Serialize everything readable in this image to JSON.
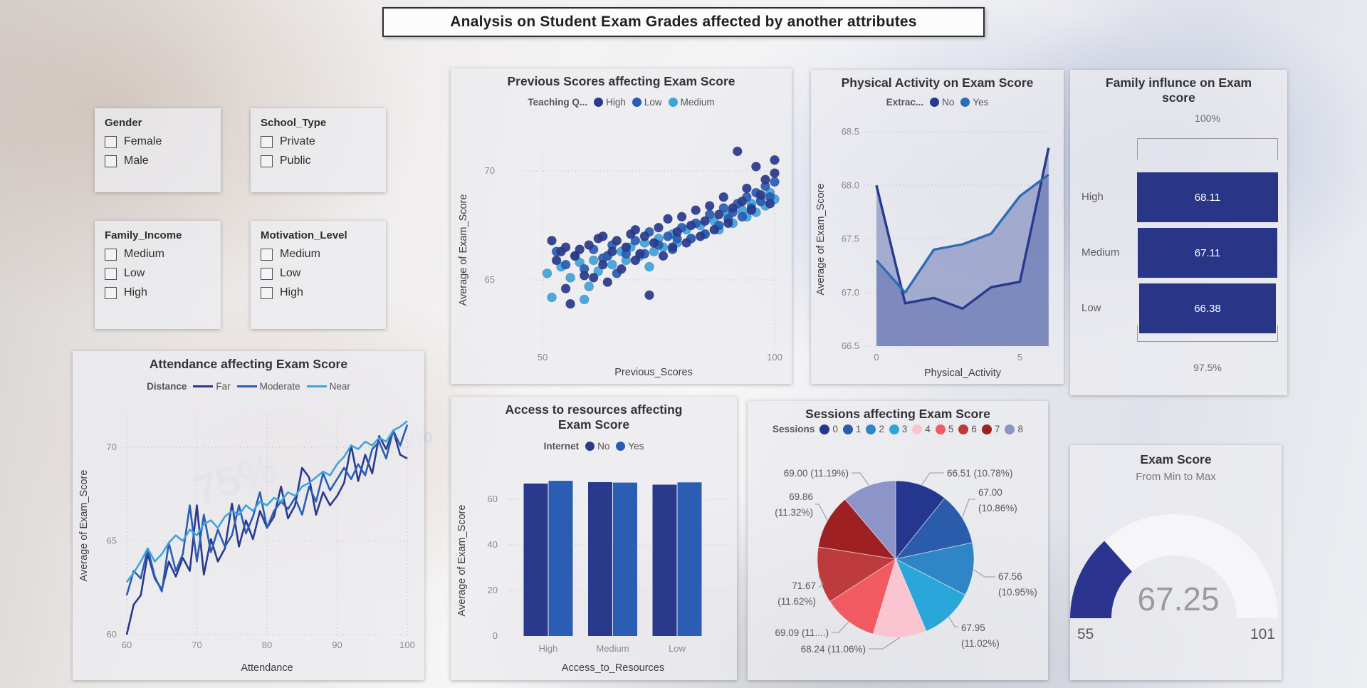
{
  "title": "Analysis on Student Exam Grades affected by another attributes",
  "background_ghost_text": "75%",
  "colors": {
    "navy": "#293A8C",
    "blue": "#2A5DB3",
    "light_blue": "#3FA4DC",
    "bar_navy": "#293586",
    "gauge_fill": "#2B3590",
    "gauge_track": "#F6F6F8"
  },
  "filters": [
    {
      "title": "Gender",
      "options": [
        "Female",
        "Male"
      ]
    },
    {
      "title": "School_Type",
      "options": [
        "Private",
        "Public"
      ]
    },
    {
      "title": "Family_Income",
      "options": [
        "Medium",
        "Low",
        "High"
      ]
    },
    {
      "title": "Motivation_Level",
      "options": [
        "Medium",
        "Low",
        "High"
      ]
    }
  ],
  "chart_data": [
    {
      "id": "attendance",
      "type": "line",
      "title": "Attendance affecting Exam Score",
      "legend_title": "Distance",
      "xlabel": "Attendance",
      "ylabel": "Average of Exam_Score",
      "xlim": [
        60,
        100
      ],
      "ylim": [
        59.8,
        72.2
      ],
      "xticks": [
        60,
        70,
        80,
        90,
        100
      ],
      "yticks": [
        60,
        65,
        70
      ],
      "x_start": 60,
      "x_step": 1,
      "series": [
        {
          "name": "Far",
          "color": "#293A8C",
          "values": [
            60.0,
            61.6,
            62.1,
            64.3,
            63.0,
            62.4,
            63.9,
            63.1,
            64.1,
            63.4,
            66.9,
            63.2,
            65.1,
            63.9,
            64.6,
            67.0,
            64.7,
            66.1,
            65.1,
            66.6,
            65.7,
            66.3,
            67.9,
            66.2,
            66.9,
            68.9,
            68.4,
            66.4,
            67.6,
            66.9,
            67.4,
            68.1,
            70.1,
            68.2,
            69.6,
            68.6,
            70.6,
            69.9,
            70.9,
            69.6,
            69.4
          ]
        },
        {
          "name": "Moderate",
          "color": "#2A5DB3",
          "values": [
            62.1,
            63.4,
            63.0,
            64.6,
            63.1,
            62.3,
            64.9,
            63.4,
            64.3,
            66.9,
            63.9,
            66.4,
            64.4,
            65.6,
            64.7,
            65.3,
            66.9,
            65.4,
            66.3,
            67.6,
            65.7,
            66.6,
            67.1,
            66.7,
            67.3,
            66.4,
            67.9,
            67.1,
            68.6,
            67.7,
            68.3,
            68.9,
            68.3,
            69.1,
            68.5,
            69.9,
            70.3,
            69.4,
            70.9,
            70.1,
            71.2
          ]
        },
        {
          "name": "Near",
          "color": "#3FA4DC",
          "values": [
            62.8,
            63.3,
            63.9,
            64.6,
            63.9,
            64.3,
            64.9,
            65.3,
            65.0,
            65.6,
            65.3,
            65.9,
            66.1,
            65.7,
            66.3,
            66.6,
            66.4,
            66.9,
            66.6,
            67.1,
            66.9,
            67.3,
            67.1,
            67.6,
            67.4,
            67.9,
            68.1,
            68.4,
            68.7,
            68.5,
            69.1,
            69.5,
            70.1,
            69.9,
            70.3,
            70.1,
            70.5,
            70.3,
            70.9,
            71.1,
            71.4
          ]
        }
      ]
    },
    {
      "id": "previous",
      "type": "scatter",
      "title": "Previous Scores affecting Exam Score",
      "legend_title": "Teaching Q...",
      "xlabel": "Previous_Scores",
      "ylabel": "Average of Exam_Score",
      "xlim": [
        47,
        101
      ],
      "ylim": [
        61.5,
        70.9
      ],
      "xticks": [
        50,
        100
      ],
      "yticks": [
        65,
        70
      ],
      "series": [
        {
          "name": "High",
          "color": "#293A8C",
          "points": [
            [
              52,
              66.8
            ],
            [
              53,
              65.9
            ],
            [
              54,
              66.3
            ],
            [
              55,
              64.6
            ],
            [
              55,
              66.5
            ],
            [
              56,
              63.9
            ],
            [
              57,
              66.1
            ],
            [
              58,
              66.4
            ],
            [
              59,
              65.2
            ],
            [
              60,
              66.6
            ],
            [
              61,
              65.1
            ],
            [
              62,
              66.9
            ],
            [
              63,
              65.7
            ],
            [
              63,
              67.0
            ],
            [
              64,
              64.9
            ],
            [
              65,
              66.3
            ],
            [
              66,
              66.8
            ],
            [
              67,
              65.5
            ],
            [
              68,
              66.5
            ],
            [
              69,
              67.1
            ],
            [
              70,
              65.9
            ],
            [
              70,
              67.3
            ],
            [
              71,
              66.2
            ],
            [
              72,
              67.0
            ],
            [
              73,
              64.3
            ],
            [
              74,
              66.7
            ],
            [
              75,
              67.4
            ],
            [
              76,
              66.1
            ],
            [
              77,
              67.8
            ],
            [
              78,
              66.5
            ],
            [
              79,
              67.2
            ],
            [
              80,
              67.9
            ],
            [
              81,
              66.7
            ],
            [
              82,
              67.5
            ],
            [
              83,
              68.2
            ],
            [
              84,
              67.0
            ],
            [
              85,
              67.7
            ],
            [
              86,
              68.4
            ],
            [
              87,
              67.3
            ],
            [
              88,
              68.0
            ],
            [
              89,
              68.8
            ],
            [
              90,
              67.6
            ],
            [
              91,
              68.3
            ],
            [
              92,
              70.9
            ],
            [
              93,
              68.6
            ],
            [
              94,
              69.2
            ],
            [
              95,
              68.2
            ],
            [
              96,
              70.2
            ],
            [
              97,
              68.9
            ],
            [
              98,
              69.6
            ],
            [
              99,
              68.5
            ],
            [
              100,
              69.9
            ],
            [
              100,
              70.5
            ]
          ]
        },
        {
          "name": "Low",
          "color": "#2A5DB3",
          "points": [
            [
              53,
              66.3
            ],
            [
              55,
              65.7
            ],
            [
              57,
              66.1
            ],
            [
              59,
              65.5
            ],
            [
              61,
              66.4
            ],
            [
              63,
              66.0
            ],
            [
              64,
              66.1
            ],
            [
              65,
              66.6
            ],
            [
              66,
              65.3
            ],
            [
              68,
              66.2
            ],
            [
              70,
              66.8
            ],
            [
              72,
              66.2
            ],
            [
              73,
              67.2
            ],
            [
              75,
              66.6
            ],
            [
              77,
              67.0
            ],
            [
              78,
              66.4
            ],
            [
              79,
              66.9
            ],
            [
              80,
              67.4
            ],
            [
              82,
              66.9
            ],
            [
              83,
              67.6
            ],
            [
              85,
              67.1
            ],
            [
              86,
              68.0
            ],
            [
              88,
              67.5
            ],
            [
              89,
              68.3
            ],
            [
              90,
              67.8
            ],
            [
              91,
              68.1
            ],
            [
              92,
              68.5
            ],
            [
              93,
              67.9
            ],
            [
              94,
              68.8
            ],
            [
              95,
              68.3
            ],
            [
              96,
              69.0
            ],
            [
              97,
              68.6
            ],
            [
              98,
              69.3
            ],
            [
              99,
              68.8
            ],
            [
              100,
              69.5
            ]
          ]
        },
        {
          "name": "Medium",
          "color": "#3FA4DC",
          "points": [
            [
              51,
              65.3
            ],
            [
              52,
              64.2
            ],
            [
              54,
              65.6
            ],
            [
              56,
              65.1
            ],
            [
              58,
              65.8
            ],
            [
              59,
              64.1
            ],
            [
              60,
              64.7
            ],
            [
              61,
              65.9
            ],
            [
              62,
              65.4
            ],
            [
              64,
              66.1
            ],
            [
              65,
              65.7
            ],
            [
              67,
              66.3
            ],
            [
              68,
              65.9
            ],
            [
              69,
              66.5
            ],
            [
              71,
              66.1
            ],
            [
              72,
              66.7
            ],
            [
              73,
              65.6
            ],
            [
              74,
              66.3
            ],
            [
              75,
              66.9
            ],
            [
              76,
              66.5
            ],
            [
              78,
              67.1
            ],
            [
              79,
              66.7
            ],
            [
              81,
              67.3
            ],
            [
              82,
              66.9
            ],
            [
              84,
              67.5
            ],
            [
              85,
              67.1
            ],
            [
              87,
              67.7
            ],
            [
              88,
              67.3
            ],
            [
              90,
              68.0
            ],
            [
              91,
              67.6
            ],
            [
              93,
              68.2
            ],
            [
              94,
              67.9
            ],
            [
              95,
              68.5
            ],
            [
              96,
              68.1
            ],
            [
              97,
              68.7
            ],
            [
              98,
              68.4
            ],
            [
              99,
              69.0
            ],
            [
              100,
              68.7
            ]
          ]
        }
      ]
    },
    {
      "id": "access",
      "type": "bar",
      "title": "Access to resources affecting Exam Score",
      "legend_title": "Internet",
      "xlabel": "Access_to_Resources",
      "ylabel": "Average of Exam_Score",
      "categories": [
        "High",
        "Medium",
        "Low"
      ],
      "yticks": [
        0,
        20,
        40,
        60
      ],
      "ylim": [
        0,
        70
      ],
      "series": [
        {
          "name": "No",
          "color": "#293A8C",
          "values": [
            66.9,
            67.5,
            66.4
          ]
        },
        {
          "name": "Yes",
          "color": "#2A5DB3",
          "values": [
            68.1,
            67.3,
            67.4
          ]
        }
      ]
    },
    {
      "id": "physical",
      "type": "area-line",
      "title": "Physical Activity on Exam Score",
      "legend_title": "Extrac...",
      "xlabel": "Physical_Activity",
      "ylabel": "Average of Exam_Score",
      "xlim": [
        0,
        6
      ],
      "ylim": [
        66.5,
        68.5
      ],
      "xticks": [
        0,
        5
      ],
      "yticks": [
        66.5,
        67.0,
        67.5,
        68.0,
        68.5
      ],
      "x": [
        0,
        1,
        2,
        3,
        4,
        5,
        6
      ],
      "series": [
        {
          "name": "No",
          "color": "#293A8C",
          "values": [
            68.0,
            66.9,
            66.95,
            66.85,
            67.05,
            67.1,
            68.35
          ]
        },
        {
          "name": "Yes",
          "color": "#2E6CB5",
          "values": [
            67.3,
            67.0,
            67.4,
            67.45,
            67.55,
            67.9,
            68.1
          ]
        }
      ]
    },
    {
      "id": "sessions",
      "type": "pie",
      "title": "Sessions affecting Exam Score",
      "legend_title": "Sessions",
      "slices": [
        {
          "name": "0",
          "color": "#24368E",
          "pct": 10.78,
          "label": "66.51 (10.78%)"
        },
        {
          "name": "1",
          "color": "#2B5CAC",
          "pct": 10.86,
          "label": "67.00 (10.86%)"
        },
        {
          "name": "2",
          "color": "#2F86C6",
          "pct": 10.95,
          "label": "67.56 (10.95%)"
        },
        {
          "name": "3",
          "color": "#2BA6D9",
          "pct": 11.02,
          "label": "67.95 (11.02%)"
        },
        {
          "name": "4",
          "color": "#FAC4D0",
          "pct": 11.06,
          "label": "68.24 (11.06%)"
        },
        {
          "name": "5",
          "color": "#F05A60",
          "pct": 11.2,
          "label": "69.09 (11....)"
        },
        {
          "name": "6",
          "color": "#BE3B3D",
          "pct": 11.62,
          "label": "71.67 (11.62%)"
        },
        {
          "name": "7",
          "color": "#9E2022",
          "pct": 11.32,
          "label": "69.86 (11.32%)"
        },
        {
          "name": "8",
          "color": "#8C94C8",
          "pct": 11.19,
          "label": "69.00 (11.19%)"
        }
      ]
    },
    {
      "id": "family",
      "type": "bar-h",
      "title": "Family influnce on Exam score",
      "categories": [
        "High",
        "Medium",
        "Low"
      ],
      "values": [
        68.11,
        67.11,
        66.38
      ],
      "value_labels": [
        "68.11",
        "67.11",
        "66.38"
      ],
      "top_label": "100%",
      "bottom_label": "97.5%",
      "bar_color": "#293586"
    },
    {
      "id": "gauge",
      "type": "gauge",
      "title": "Exam Score",
      "subtitle": "From Min to Max",
      "min": 55,
      "max": 101,
      "value": 67.25,
      "min_label": "55",
      "max_label": "101",
      "value_label": "67.25",
      "fill_color": "#2B3590",
      "track_color": "#F6F6F8"
    }
  ]
}
